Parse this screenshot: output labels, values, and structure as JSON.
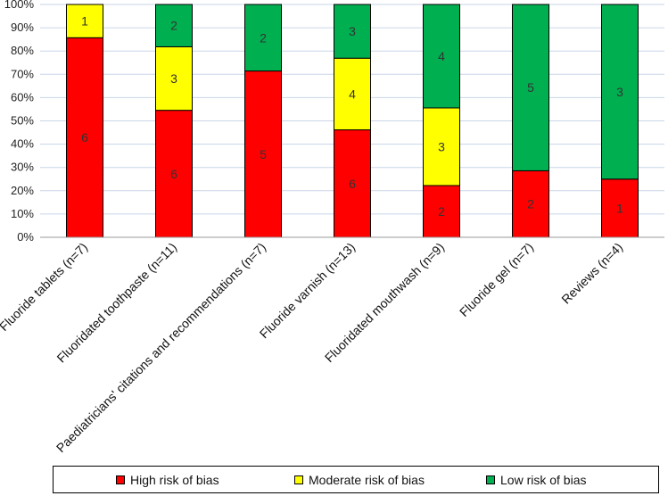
{
  "chart_data": {
    "type": "bar",
    "stacked": true,
    "percent": true,
    "categories": [
      "Fluoride tablets (n=7)",
      "Fluoridated toothpaste (n=11)",
      "Paediatricians' citations and recommendations (n=7)",
      "Fluoride varnish (n=13)",
      "Fluoridated mouthwash (n=9)",
      "Fluoride gel (n=7)",
      "Reviews (n=4)"
    ],
    "series": [
      {
        "name": "High risk of bias",
        "color": "#ff0000",
        "values": [
          6,
          6,
          5,
          6,
          2,
          2,
          1
        ]
      },
      {
        "name": "Moderate risk of bias",
        "color": "#ffff00",
        "values": [
          1,
          3,
          0,
          4,
          3,
          0,
          0
        ]
      },
      {
        "name": "Low risk of bias",
        "color": "#00b050",
        "values": [
          0,
          2,
          2,
          3,
          4,
          5,
          3
        ]
      }
    ],
    "ylim": [
      0,
      100
    ],
    "yticks": [
      "0%",
      "10%",
      "20%",
      "30%",
      "40%",
      "50%",
      "60%",
      "70%",
      "80%",
      "90%",
      "100%"
    ],
    "grid": true,
    "legend_position": "bottom",
    "title": "",
    "xlabel": "",
    "ylabel": ""
  }
}
